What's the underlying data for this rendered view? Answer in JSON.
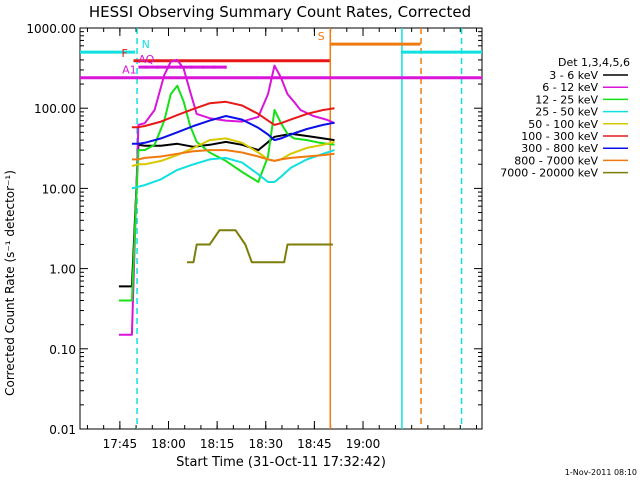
{
  "chart_data": {
    "type": "line",
    "title": "HESSI Observing Summary Count Rates, Corrected",
    "xlabel": "Start Time (31-Oct-11 17:32:42)",
    "ylabel": "Corrected Count Rate (s⁻¹ detector⁻¹)",
    "ylog": true,
    "ylim": [
      0.01,
      1000
    ],
    "xlim_min": [
      0,
      124
    ],
    "xlim_labels": [
      "17:32:42",
      "19:36:42"
    ],
    "y_tick_labels": [
      "1000.00",
      "100.00",
      "10.00",
      "1.00",
      "0.10",
      "0.01"
    ],
    "y_ticks": [
      1000,
      100,
      10,
      1,
      0.1,
      0.01
    ],
    "x_tick_labels": [
      "17:45",
      "18:00",
      "18:15",
      "18:30",
      "18:45",
      "19:00"
    ],
    "x_ticks_min": [
      12.3,
      27.3,
      42.3,
      57.3,
      72.3,
      87.3
    ],
    "legend_title": "Det 1,3,4,5,6",
    "legend_position": "right",
    "grid": false,
    "footer": "1-Nov-2011 08:10",
    "series": [
      {
        "name": "3 - 6 keV",
        "color": "#000000",
        "x": [
          12,
          14,
          16,
          18,
          20,
          25,
          30,
          35,
          40,
          45,
          50,
          55,
          60,
          65,
          70,
          75,
          78.5
        ],
        "y": [
          0.6,
          0.6,
          0.6,
          35,
          34,
          34,
          36,
          33,
          35,
          38,
          35,
          30,
          44,
          48,
          45,
          42,
          40
        ]
      },
      {
        "name": "6 - 12 keV",
        "color": "#d815d8",
        "x": [
          12,
          14,
          16,
          18,
          20,
          23,
          26,
          28,
          30,
          32,
          34,
          36,
          40,
          45,
          50,
          55,
          58,
          60,
          62,
          64,
          66,
          68,
          72,
          76,
          78.5
        ],
        "y": [
          0.15,
          0.15,
          0.15,
          62,
          65,
          95,
          260,
          380,
          400,
          310,
          160,
          85,
          75,
          70,
          68,
          78,
          150,
          340,
          240,
          150,
          120,
          95,
          80,
          72,
          65
        ]
      },
      {
        "name": "12 - 25 keV",
        "color": "#18e018",
        "x": [
          12,
          14,
          16,
          18,
          20,
          23,
          26,
          28,
          30,
          32,
          34,
          36,
          40,
          45,
          50,
          55,
          58,
          60,
          62,
          64,
          66,
          70,
          74,
          78.5
        ],
        "y": [
          0.4,
          0.4,
          0.4,
          30,
          30,
          35,
          70,
          150,
          190,
          120,
          60,
          38,
          28,
          22,
          16,
          12,
          25,
          95,
          65,
          48,
          42,
          40,
          37,
          35
        ]
      },
      {
        "name": "25 - 50 keV",
        "color": "#10e0e0",
        "x": [
          16,
          18,
          20,
          25,
          30,
          35,
          40,
          45,
          50,
          55,
          58,
          60,
          62,
          65,
          70,
          75,
          78.5
        ],
        "y": [
          10,
          10.5,
          11,
          13,
          17,
          20,
          23,
          24,
          21,
          15,
          12,
          12,
          14,
          18,
          23,
          27,
          30
        ]
      },
      {
        "name": "50 - 100 keV",
        "color": "#d8c800",
        "x": [
          16,
          18,
          20,
          25,
          30,
          35,
          40,
          45,
          50,
          55,
          58,
          60,
          62,
          65,
          70,
          75,
          78.5
        ],
        "y": [
          19,
          20,
          20,
          22,
          26,
          32,
          40,
          42,
          37,
          28,
          23,
          22,
          23,
          27,
          32,
          35,
          38
        ]
      },
      {
        "name": "100 - 300 keV",
        "color": "#e81818",
        "x": [
          16,
          18,
          20,
          25,
          30,
          35,
          40,
          45,
          50,
          55,
          58,
          60,
          62,
          65,
          70,
          75,
          78.5
        ],
        "y": [
          58,
          58,
          60,
          68,
          82,
          98,
          115,
          120,
          108,
          85,
          70,
          62,
          65,
          72,
          85,
          95,
          100
        ]
      },
      {
        "name": "300 - 800 keV",
        "color": "#0a10e8",
        "x": [
          16,
          18,
          20,
          25,
          30,
          35,
          40,
          45,
          50,
          55,
          58,
          60,
          62,
          65,
          70,
          75,
          78.5
        ],
        "y": [
          36,
          36,
          37,
          42,
          50,
          60,
          70,
          80,
          72,
          57,
          47,
          40,
          42,
          47,
          55,
          62,
          66
        ]
      },
      {
        "name": "800 - 7000 keV",
        "color": "#f07a10",
        "x": [
          16,
          18,
          20,
          25,
          30,
          35,
          40,
          45,
          50,
          55,
          58,
          60,
          62,
          65,
          70,
          75,
          78.5
        ],
        "y": [
          23,
          23,
          24,
          25,
          27,
          29,
          30,
          30,
          28,
          25,
          23,
          22,
          23,
          24,
          25,
          26,
          27
        ]
      },
      {
        "name": "7000 - 20000 keV",
        "color": "#7d7d0a",
        "x": [
          33,
          35,
          36,
          38,
          40,
          43,
          45,
          48,
          51,
          53,
          55,
          58,
          61,
          63,
          64,
          66,
          68,
          72,
          75,
          78
        ],
        "y": [
          1.2,
          1.2,
          2,
          2,
          2,
          3,
          3,
          3,
          2,
          1.2,
          1.2,
          1.2,
          1.2,
          1.2,
          2,
          2,
          2,
          2,
          2,
          2
        ]
      }
    ],
    "flags": [
      {
        "label": "N",
        "color": "#10e0e0",
        "level": 500,
        "segments": [
          [
            0,
            17
          ],
          [
            99,
            124
          ]
        ]
      },
      {
        "label": "F",
        "color": "#e81818",
        "level": 390,
        "segments": [
          [
            16.5,
            77
          ]
        ]
      },
      {
        "label": "AQ",
        "color": "#d815d8",
        "level": 325,
        "segments": [
          [
            18,
            45
          ]
        ],
        "dotted": true
      },
      {
        "label": "A1",
        "color": "#d815d8",
        "level": 240,
        "segments": [
          [
            0,
            124
          ]
        ]
      },
      {
        "label": "S",
        "color": "#f07a10",
        "level": 630,
        "segments": [
          [
            77,
            105
          ]
        ]
      }
    ],
    "vlines": [
      {
        "t": 17.6,
        "color": "#10e0e0",
        "style": "dashed"
      },
      {
        "t": 77.2,
        "color": "#f07a10",
        "style": "solid"
      },
      {
        "t": 99.3,
        "color": "#10e0e0",
        "style": "solid"
      },
      {
        "t": 105.2,
        "color": "#f07a10",
        "style": "dashed"
      },
      {
        "t": 117.7,
        "color": "#10e0e0",
        "style": "dashed"
      }
    ]
  }
}
